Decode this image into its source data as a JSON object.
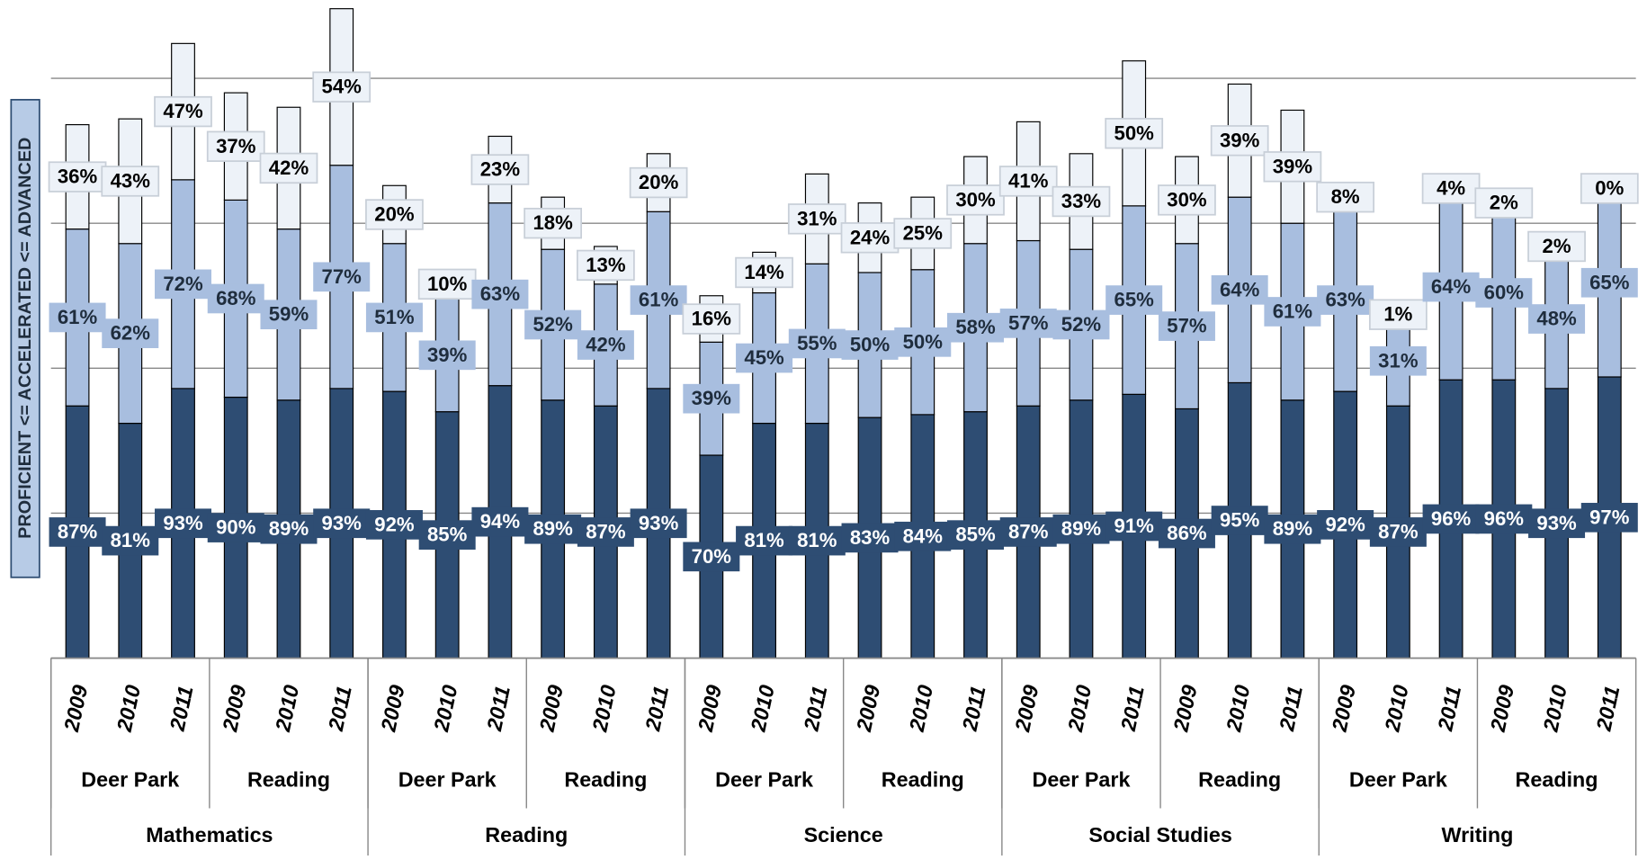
{
  "chart_data": {
    "type": "bar",
    "stacked": true,
    "y_axis_label": "PROFICIENT <= ACCELERATED <= ADVANCED",
    "categories": [
      "2009",
      "2010",
      "2011",
      "2009",
      "2010",
      "2011",
      "2009",
      "2010",
      "2011",
      "2009",
      "2010",
      "2011",
      "2009",
      "2010",
      "2011",
      "2009",
      "2010",
      "2011",
      "2009",
      "2010",
      "2011",
      "2009",
      "2010",
      "2011",
      "2009",
      "2010",
      "2011",
      "2009",
      "2010",
      "2011"
    ],
    "groups": [
      "Deer Park",
      "Reading",
      "Deer Park",
      "Reading",
      "Deer Park",
      "Reading",
      "Deer Park",
      "Reading",
      "Deer Park",
      "Reading"
    ],
    "subjects": [
      "Mathematics",
      "Reading",
      "Science",
      "Social Studies",
      "Writing"
    ],
    "series": [
      {
        "color": "#2e4d73",
        "label_text_color": "#ffffff",
        "values": [
          87,
          81,
          93,
          90,
          89,
          93,
          92,
          85,
          94,
          89,
          87,
          93,
          70,
          81,
          81,
          83,
          84,
          85,
          87,
          89,
          91,
          86,
          95,
          89,
          92,
          87,
          96,
          96,
          93,
          97
        ],
        "value_labels": [
          "87%",
          "81%",
          "93%",
          "90%",
          "89%",
          "93%",
          "92%",
          "85%",
          "94%",
          "89%",
          "87%",
          "93%",
          "70%",
          "81%",
          "81%",
          "83%",
          "84%",
          "85%",
          "87%",
          "89%",
          "91%",
          "86%",
          "95%",
          "89%",
          "92%",
          "87%",
          "96%",
          "96%",
          "93%",
          "97%"
        ]
      },
      {
        "color": "#a8bedf",
        "label_text_color": "#1f2d3d",
        "values": [
          61,
          62,
          72,
          68,
          59,
          77,
          51,
          39,
          63,
          52,
          42,
          61,
          39,
          45,
          55,
          50,
          50,
          58,
          57,
          52,
          65,
          57,
          64,
          61,
          63,
          31,
          64,
          60,
          48,
          65
        ],
        "value_labels": [
          "61%",
          "62%",
          "72%",
          "68%",
          "59%",
          "77%",
          "51%",
          "39%",
          "63%",
          "52%",
          "42%",
          "61%",
          "39%",
          "45%",
          "55%",
          "50%",
          "50%",
          "58%",
          "57%",
          "52%",
          "65%",
          "57%",
          "64%",
          "61%",
          "63%",
          "31%",
          "64%",
          "60%",
          "48%",
          "65%"
        ]
      },
      {
        "color": "#edf2f8",
        "label_text_color": "#000000",
        "values": [
          36,
          43,
          47,
          37,
          42,
          54,
          20,
          10,
          23,
          18,
          13,
          20,
          16,
          14,
          31,
          24,
          25,
          30,
          41,
          33,
          50,
          30,
          39,
          39,
          8,
          1,
          4,
          2,
          2,
          0
        ],
        "value_labels": [
          "36%",
          "43%",
          "47%",
          "37%",
          "42%",
          "54%",
          "20%",
          "10%",
          "23%",
          "18%",
          "13%",
          "20%",
          "16%",
          "14%",
          "31%",
          "24%",
          "25%",
          "30%",
          "41%",
          "33%",
          "50%",
          "30%",
          "39%",
          "39%",
          "8%",
          "1%",
          "4%",
          "2%",
          "2%",
          "0%"
        ]
      }
    ],
    "ylim": [
      0,
      227
    ],
    "yticks": [
      0,
      50,
      100,
      150,
      200
    ],
    "grid": true
  }
}
